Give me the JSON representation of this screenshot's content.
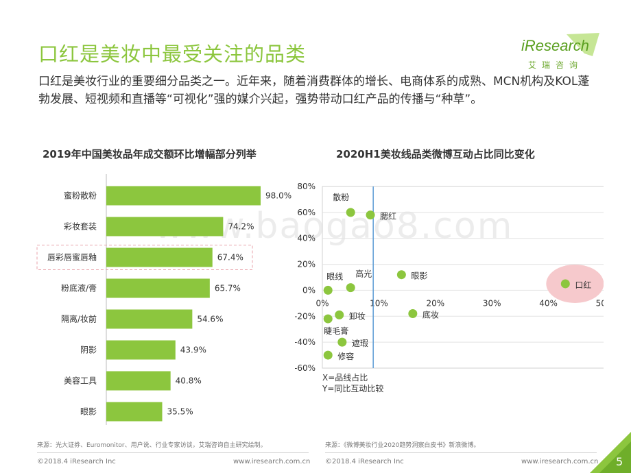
{
  "page": {
    "title": "口红是美妆中最受关注的品类",
    "intro": "口红是美妆行业的重要细分品类之一。近年来，随着消费群体的增长、电商体系的成熟、MCN机构及KOL蓬勃发展、短视频和直播等“可视化”强的媒介兴起，强势带动口红产品的传播与“种草”。",
    "logo": {
      "word": "iResearch",
      "tagline": "艾瑞咨询"
    },
    "watermark": "www.baogao8.com",
    "page_number": "5"
  },
  "left_chart": {
    "title": "2019年中国美妆品年成交额环比增幅部分列举",
    "source": "来源：光大证券、Euromonitor、用户说、行业专家访谈，艾瑞咨询自主研究绘制。",
    "footer_left": "©2018.4 iResearch Inc",
    "footer_right": "www.iresearch.com.cn"
  },
  "right_chart": {
    "title": "2020H1美妆线品类微博互动占比同比变化",
    "source": "来源：《微博美妆行业2020趋势洞察白皮书》新浪微博。",
    "footer_left": "©2018.4 iResearch Inc",
    "footer_right": "www.iresearch.com.cn",
    "axis_note_x": "X=品线占比",
    "axis_note_y": "Y=同比互动比较"
  },
  "colors": {
    "accent": "#8cc63e",
    "highlight_box": "#e8a0a8",
    "highlight_fill": "#f6c9cc",
    "divider_line": "#5b9bd5"
  },
  "chart_data": [
    {
      "type": "bar",
      "orientation": "horizontal",
      "categories": [
        "蜜粉散粉",
        "彩妆套装",
        "唇彩唇蜜唇釉",
        "粉底液/膏",
        "隔离/妆前",
        "阴影",
        "美容工具",
        "眼影"
      ],
      "values": [
        98.0,
        74.2,
        67.4,
        65.7,
        54.6,
        43.9,
        40.8,
        35.5
      ],
      "value_labels": [
        "98.0%",
        "74.2%",
        "67.4%",
        "65.7%",
        "54.6%",
        "43.9%",
        "40.8%",
        "35.5%"
      ],
      "highlighted_category": "唇彩唇蜜唇釉",
      "xlim": [
        0,
        120
      ]
    },
    {
      "type": "scatter",
      "xlim": [
        0,
        50
      ],
      "ylim": [
        -60,
        80
      ],
      "x_ticks": [
        "0%",
        "10%",
        "20%",
        "30%",
        "40%",
        "50%"
      ],
      "y_ticks": [
        "80%",
        "60%",
        "40%",
        "20%",
        "0%",
        "-20%",
        "-40%",
        "-60%"
      ],
      "reference_x": 9,
      "highlighted_point": "口红",
      "points": [
        {
          "label": "散粉",
          "x": 5,
          "y": 60
        },
        {
          "label": "腮红",
          "x": 8.5,
          "y": 58
        },
        {
          "label": "眼影",
          "x": 14,
          "y": 12
        },
        {
          "label": "高光",
          "x": 5,
          "y": 2
        },
        {
          "label": "眼线",
          "x": 1,
          "y": 0
        },
        {
          "label": "口红",
          "x": 43,
          "y": 5
        },
        {
          "label": "卸妆",
          "x": 3,
          "y": -19
        },
        {
          "label": "底妆",
          "x": 16,
          "y": -18
        },
        {
          "label": "睫毛膏",
          "x": 1,
          "y": -22
        },
        {
          "label": "遮瑕",
          "x": 3.5,
          "y": -40
        },
        {
          "label": "修容",
          "x": 1,
          "y": -50
        }
      ]
    }
  ]
}
